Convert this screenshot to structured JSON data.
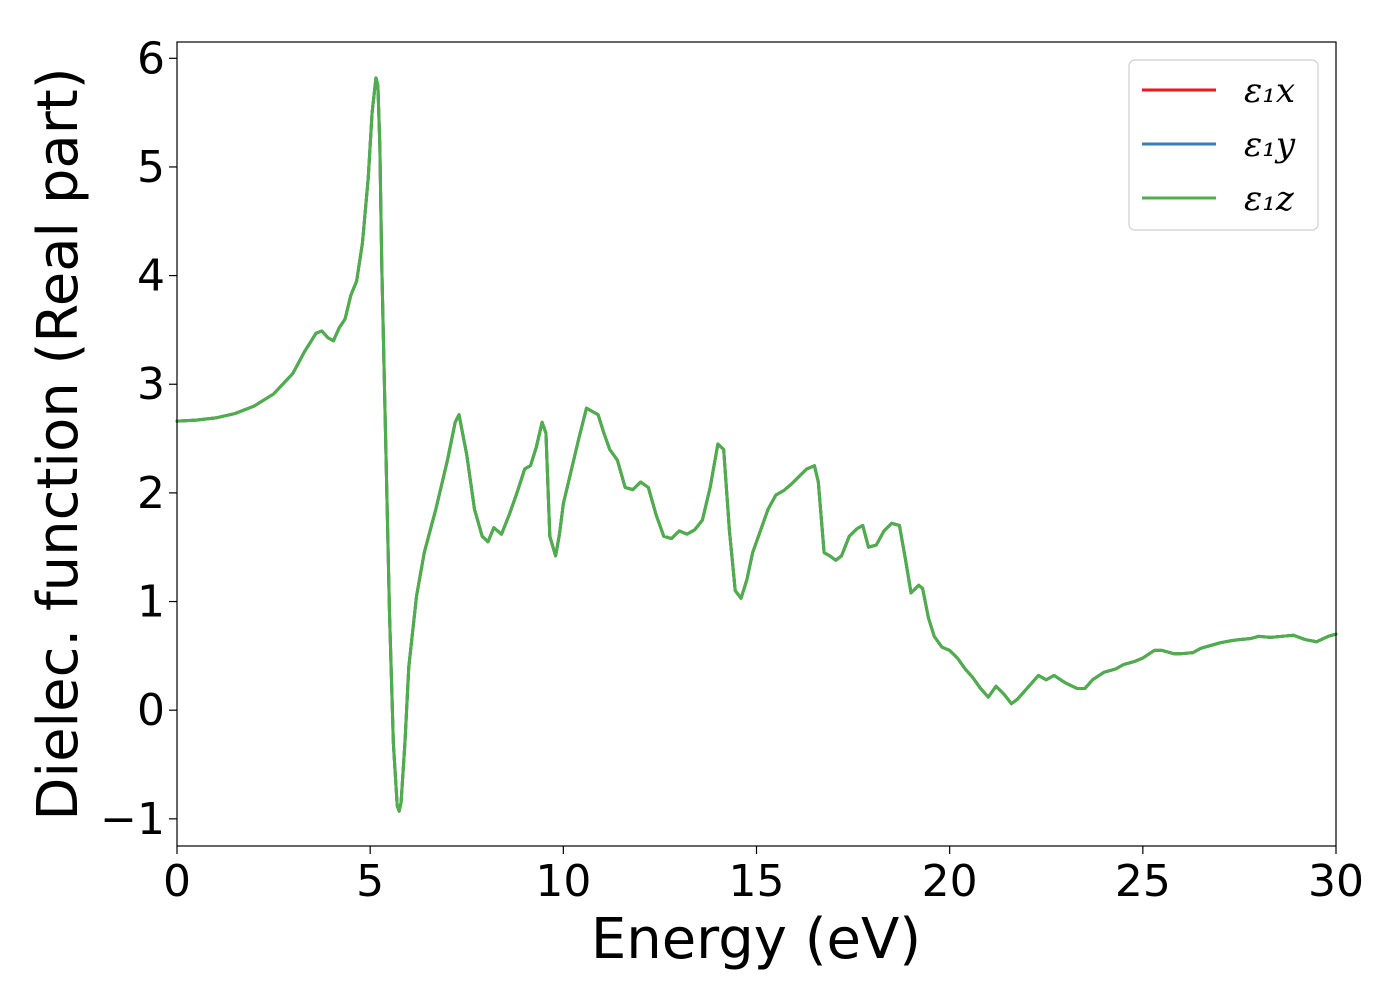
{
  "chart_data": {
    "type": "line",
    "xlabel": "Energy (eV)",
    "ylabel": "Dielec. function (Real part)",
    "xlim": [
      0,
      30
    ],
    "ylim": [
      -1.25,
      6.15
    ],
    "xticks": [
      0,
      5,
      10,
      15,
      20,
      25,
      30
    ],
    "xtick_labels": [
      "0",
      "5",
      "10",
      "15",
      "20",
      "25",
      "30"
    ],
    "yticks": [
      -1,
      0,
      1,
      2,
      3,
      4,
      5,
      6
    ],
    "ytick_labels": [
      "−1",
      "0",
      "1",
      "2",
      "3",
      "4",
      "5",
      "6"
    ],
    "grid": false,
    "legend_position": "top-right",
    "series": [
      {
        "name": "ε₁x",
        "color": "#e41a1c",
        "x": [
          0,
          0.5,
          1,
          1.5,
          2,
          2.5,
          3,
          3.3,
          3.6,
          3.75,
          3.9,
          4.05,
          4.2,
          4.35,
          4.5,
          4.65,
          4.8,
          4.95,
          5.05,
          5.15,
          5.2,
          5.25,
          5.3,
          5.4,
          5.5,
          5.6,
          5.7,
          5.75,
          5.8,
          5.9,
          6.0,
          6.2,
          6.4,
          6.7,
          7.0,
          7.2,
          7.3,
          7.5,
          7.7,
          7.9,
          8.05,
          8.2,
          8.4,
          8.6,
          8.8,
          9.0,
          9.15,
          9.3,
          9.45,
          9.55,
          9.65,
          9.8,
          9.9,
          10.0,
          10.2,
          10.4,
          10.6,
          10.75,
          10.9,
          11.05,
          11.2,
          11.4,
          11.6,
          11.8,
          12.0,
          12.2,
          12.4,
          12.6,
          12.8,
          13.0,
          13.2,
          13.4,
          13.6,
          13.8,
          14.0,
          14.15,
          14.3,
          14.45,
          14.6,
          14.75,
          14.9,
          15.1,
          15.3,
          15.5,
          15.7,
          15.9,
          16.1,
          16.3,
          16.5,
          16.6,
          16.75,
          16.9,
          17.05,
          17.2,
          17.4,
          17.6,
          17.75,
          17.9,
          18.1,
          18.3,
          18.5,
          18.7,
          18.85,
          19.0,
          19.2,
          19.3,
          19.45,
          19.6,
          19.8,
          20.0,
          20.2,
          20.4,
          20.6,
          20.8,
          21.0,
          21.2,
          21.4,
          21.6,
          21.75,
          22.0,
          22.3,
          22.5,
          22.7,
          23.0,
          23.3,
          23.5,
          23.7,
          24.0,
          24.3,
          24.5,
          24.8,
          25.0,
          25.3,
          25.5,
          25.8,
          26.0,
          26.3,
          26.5,
          26.8,
          27.0,
          27.3,
          27.5,
          27.8,
          28.0,
          28.3,
          28.6,
          28.9,
          29.2,
          29.5,
          29.8,
          30.0
        ],
        "y": [
          2.66,
          2.67,
          2.69,
          2.73,
          2.8,
          2.91,
          3.1,
          3.3,
          3.47,
          3.49,
          3.43,
          3.4,
          3.52,
          3.6,
          3.82,
          3.95,
          4.3,
          4.9,
          5.5,
          5.82,
          5.75,
          5.2,
          4.1,
          2.5,
          0.9,
          -0.3,
          -0.88,
          -0.93,
          -0.85,
          -0.3,
          0.4,
          1.05,
          1.45,
          1.85,
          2.3,
          2.65,
          2.72,
          2.35,
          1.85,
          1.6,
          1.55,
          1.68,
          1.62,
          1.8,
          2.0,
          2.22,
          2.25,
          2.42,
          2.65,
          2.55,
          1.6,
          1.42,
          1.62,
          1.9,
          2.2,
          2.5,
          2.78,
          2.75,
          2.72,
          2.55,
          2.4,
          2.3,
          2.05,
          2.03,
          2.1,
          2.05,
          1.8,
          1.6,
          1.58,
          1.65,
          1.62,
          1.66,
          1.75,
          2.05,
          2.45,
          2.4,
          1.65,
          1.1,
          1.03,
          1.2,
          1.45,
          1.65,
          1.85,
          1.98,
          2.02,
          2.08,
          2.15,
          2.22,
          2.25,
          2.1,
          1.45,
          1.42,
          1.38,
          1.42,
          1.6,
          1.67,
          1.7,
          1.5,
          1.52,
          1.65,
          1.72,
          1.7,
          1.4,
          1.08,
          1.15,
          1.12,
          0.85,
          0.68,
          0.58,
          0.55,
          0.48,
          0.38,
          0.3,
          0.2,
          0.12,
          0.22,
          0.15,
          0.06,
          0.1,
          0.2,
          0.32,
          0.28,
          0.32,
          0.25,
          0.2,
          0.2,
          0.28,
          0.35,
          0.38,
          0.42,
          0.45,
          0.48,
          0.55,
          0.55,
          0.52,
          0.52,
          0.53,
          0.57,
          0.6,
          0.62,
          0.64,
          0.65,
          0.66,
          0.68,
          0.67,
          0.68,
          0.69,
          0.65,
          0.63,
          0.68,
          0.7
        ]
      },
      {
        "name": "ε₁y",
        "color": "#377eb8",
        "x": [
          0,
          0.5,
          1,
          1.5,
          2,
          2.5,
          3,
          3.3,
          3.6,
          3.75,
          3.9,
          4.05,
          4.2,
          4.35,
          4.5,
          4.65,
          4.8,
          4.95,
          5.05,
          5.15,
          5.2,
          5.25,
          5.3,
          5.4,
          5.5,
          5.6,
          5.7,
          5.75,
          5.8,
          5.9,
          6.0,
          6.2,
          6.4,
          6.7,
          7.0,
          7.2,
          7.3,
          7.5,
          7.7,
          7.9,
          8.05,
          8.2,
          8.4,
          8.6,
          8.8,
          9.0,
          9.15,
          9.3,
          9.45,
          9.55,
          9.65,
          9.8,
          9.9,
          10.0,
          10.2,
          10.4,
          10.6,
          10.75,
          10.9,
          11.05,
          11.2,
          11.4,
          11.6,
          11.8,
          12.0,
          12.2,
          12.4,
          12.6,
          12.8,
          13.0,
          13.2,
          13.4,
          13.6,
          13.8,
          14.0,
          14.15,
          14.3,
          14.45,
          14.6,
          14.75,
          14.9,
          15.1,
          15.3,
          15.5,
          15.7,
          15.9,
          16.1,
          16.3,
          16.5,
          16.6,
          16.75,
          16.9,
          17.05,
          17.2,
          17.4,
          17.6,
          17.75,
          17.9,
          18.1,
          18.3,
          18.5,
          18.7,
          18.85,
          19.0,
          19.2,
          19.3,
          19.45,
          19.6,
          19.8,
          20.0,
          20.2,
          20.4,
          20.6,
          20.8,
          21.0,
          21.2,
          21.4,
          21.6,
          21.75,
          22.0,
          22.3,
          22.5,
          22.7,
          23.0,
          23.3,
          23.5,
          23.7,
          24.0,
          24.3,
          24.5,
          24.8,
          25.0,
          25.3,
          25.5,
          25.8,
          26.0,
          26.3,
          26.5,
          26.8,
          27.0,
          27.3,
          27.5,
          27.8,
          28.0,
          28.3,
          28.6,
          28.9,
          29.2,
          29.5,
          29.8,
          30.0
        ],
        "y": [
          2.66,
          2.67,
          2.69,
          2.73,
          2.8,
          2.91,
          3.1,
          3.3,
          3.47,
          3.49,
          3.43,
          3.4,
          3.52,
          3.6,
          3.82,
          3.95,
          4.3,
          4.9,
          5.5,
          5.82,
          5.75,
          5.2,
          4.1,
          2.5,
          0.9,
          -0.3,
          -0.88,
          -0.93,
          -0.85,
          -0.3,
          0.4,
          1.05,
          1.45,
          1.85,
          2.3,
          2.65,
          2.72,
          2.35,
          1.85,
          1.6,
          1.55,
          1.68,
          1.62,
          1.8,
          2.0,
          2.22,
          2.25,
          2.42,
          2.65,
          2.55,
          1.6,
          1.42,
          1.62,
          1.9,
          2.2,
          2.5,
          2.78,
          2.75,
          2.72,
          2.55,
          2.4,
          2.3,
          2.05,
          2.03,
          2.1,
          2.05,
          1.8,
          1.6,
          1.58,
          1.65,
          1.62,
          1.66,
          1.75,
          2.05,
          2.45,
          2.4,
          1.65,
          1.1,
          1.03,
          1.2,
          1.45,
          1.65,
          1.85,
          1.98,
          2.02,
          2.08,
          2.15,
          2.22,
          2.25,
          2.1,
          1.45,
          1.42,
          1.38,
          1.42,
          1.6,
          1.67,
          1.7,
          1.5,
          1.52,
          1.65,
          1.72,
          1.7,
          1.4,
          1.08,
          1.15,
          1.12,
          0.85,
          0.68,
          0.58,
          0.55,
          0.48,
          0.38,
          0.3,
          0.2,
          0.12,
          0.22,
          0.15,
          0.06,
          0.1,
          0.2,
          0.32,
          0.28,
          0.32,
          0.25,
          0.2,
          0.2,
          0.28,
          0.35,
          0.38,
          0.42,
          0.45,
          0.48,
          0.55,
          0.55,
          0.52,
          0.52,
          0.53,
          0.57,
          0.6,
          0.62,
          0.64,
          0.65,
          0.66,
          0.68,
          0.67,
          0.68,
          0.69,
          0.65,
          0.63,
          0.68,
          0.7
        ]
      },
      {
        "name": "ε₁z",
        "color": "#4daf4a",
        "x": [
          0,
          0.5,
          1,
          1.5,
          2,
          2.5,
          3,
          3.3,
          3.6,
          3.75,
          3.9,
          4.05,
          4.2,
          4.35,
          4.5,
          4.65,
          4.8,
          4.95,
          5.05,
          5.15,
          5.2,
          5.25,
          5.3,
          5.4,
          5.5,
          5.6,
          5.7,
          5.75,
          5.8,
          5.9,
          6.0,
          6.2,
          6.4,
          6.7,
          7.0,
          7.2,
          7.3,
          7.5,
          7.7,
          7.9,
          8.05,
          8.2,
          8.4,
          8.6,
          8.8,
          9.0,
          9.15,
          9.3,
          9.45,
          9.55,
          9.65,
          9.8,
          9.9,
          10.0,
          10.2,
          10.4,
          10.6,
          10.75,
          10.9,
          11.05,
          11.2,
          11.4,
          11.6,
          11.8,
          12.0,
          12.2,
          12.4,
          12.6,
          12.8,
          13.0,
          13.2,
          13.4,
          13.6,
          13.8,
          14.0,
          14.15,
          14.3,
          14.45,
          14.6,
          14.75,
          14.9,
          15.1,
          15.3,
          15.5,
          15.7,
          15.9,
          16.1,
          16.3,
          16.5,
          16.6,
          16.75,
          16.9,
          17.05,
          17.2,
          17.4,
          17.6,
          17.75,
          17.9,
          18.1,
          18.3,
          18.5,
          18.7,
          18.85,
          19.0,
          19.2,
          19.3,
          19.45,
          19.6,
          19.8,
          20.0,
          20.2,
          20.4,
          20.6,
          20.8,
          21.0,
          21.2,
          21.4,
          21.6,
          21.75,
          22.0,
          22.3,
          22.5,
          22.7,
          23.0,
          23.3,
          23.5,
          23.7,
          24.0,
          24.3,
          24.5,
          24.8,
          25.0,
          25.3,
          25.5,
          25.8,
          26.0,
          26.3,
          26.5,
          26.8,
          27.0,
          27.3,
          27.5,
          27.8,
          28.0,
          28.3,
          28.6,
          28.9,
          29.2,
          29.5,
          29.8,
          30.0
        ],
        "y": [
          2.66,
          2.67,
          2.69,
          2.73,
          2.8,
          2.91,
          3.1,
          3.3,
          3.47,
          3.49,
          3.43,
          3.4,
          3.52,
          3.6,
          3.82,
          3.95,
          4.3,
          4.9,
          5.5,
          5.82,
          5.75,
          5.2,
          4.1,
          2.5,
          0.9,
          -0.3,
          -0.88,
          -0.93,
          -0.85,
          -0.3,
          0.4,
          1.05,
          1.45,
          1.85,
          2.3,
          2.65,
          2.72,
          2.35,
          1.85,
          1.6,
          1.55,
          1.68,
          1.62,
          1.8,
          2.0,
          2.22,
          2.25,
          2.42,
          2.65,
          2.55,
          1.6,
          1.42,
          1.62,
          1.9,
          2.2,
          2.5,
          2.78,
          2.75,
          2.72,
          2.55,
          2.4,
          2.3,
          2.05,
          2.03,
          2.1,
          2.05,
          1.8,
          1.6,
          1.58,
          1.65,
          1.62,
          1.66,
          1.75,
          2.05,
          2.45,
          2.4,
          1.65,
          1.1,
          1.03,
          1.2,
          1.45,
          1.65,
          1.85,
          1.98,
          2.02,
          2.08,
          2.15,
          2.22,
          2.25,
          2.1,
          1.45,
          1.42,
          1.38,
          1.42,
          1.6,
          1.67,
          1.7,
          1.5,
          1.52,
          1.65,
          1.72,
          1.7,
          1.4,
          1.08,
          1.15,
          1.12,
          0.85,
          0.68,
          0.58,
          0.55,
          0.48,
          0.38,
          0.3,
          0.2,
          0.12,
          0.22,
          0.15,
          0.06,
          0.1,
          0.2,
          0.32,
          0.28,
          0.32,
          0.25,
          0.2,
          0.2,
          0.28,
          0.35,
          0.38,
          0.42,
          0.45,
          0.48,
          0.55,
          0.55,
          0.52,
          0.52,
          0.53,
          0.57,
          0.6,
          0.62,
          0.64,
          0.65,
          0.66,
          0.68,
          0.67,
          0.68,
          0.69,
          0.65,
          0.63,
          0.68,
          0.7
        ]
      }
    ]
  }
}
